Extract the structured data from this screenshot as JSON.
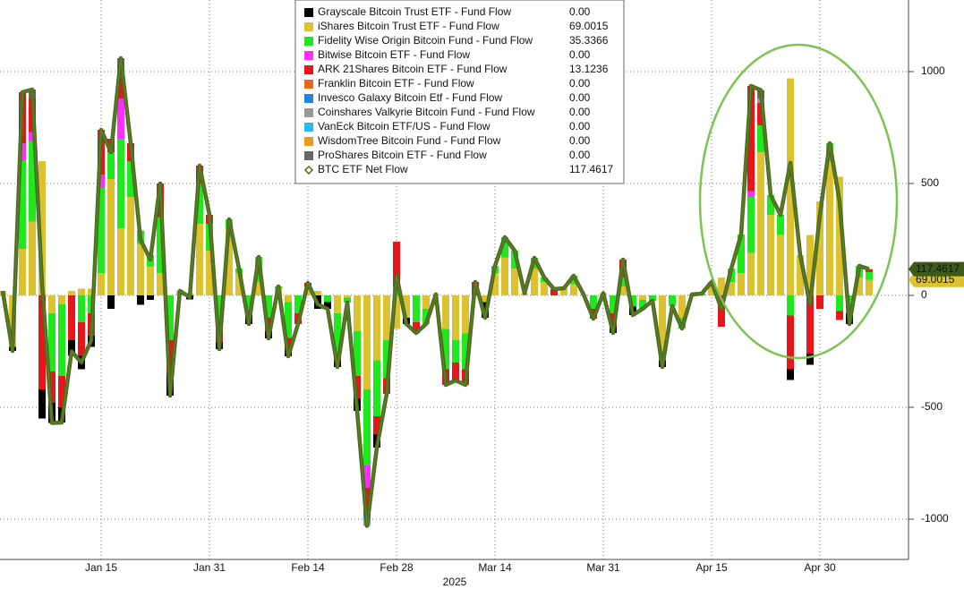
{
  "chart_data": {
    "type": "bar",
    "x_axis_label": "2025",
    "categories": [
      null,
      null,
      null,
      null,
      null,
      null,
      null,
      null,
      null,
      null,
      "Jan 15",
      null,
      null,
      null,
      null,
      null,
      null,
      null,
      null,
      null,
      null,
      "Jan 31",
      null,
      null,
      null,
      null,
      null,
      null,
      null,
      null,
      null,
      "Feb 14",
      null,
      null,
      null,
      null,
      null,
      null,
      null,
      null,
      "Feb 28",
      null,
      null,
      null,
      null,
      null,
      null,
      null,
      null,
      null,
      "Mar 14",
      null,
      null,
      null,
      null,
      null,
      null,
      null,
      null,
      null,
      null,
      "Mar 31",
      null,
      null,
      null,
      null,
      null,
      null,
      null,
      null,
      null,
      null,
      "Apr 15",
      null,
      null,
      null,
      null,
      null,
      null,
      null,
      null,
      null,
      null,
      "Apr 30",
      null,
      null,
      null,
      null,
      null
    ],
    "ylim": [
      -1180,
      1320
    ],
    "yticks": [
      -1000,
      -500,
      0,
      500,
      1000
    ],
    "grid": true,
    "series": [
      {
        "name": "Grayscale Bitcoin Trust ETF - Fund Flow",
        "color": "#000000",
        "legend_label": "0.00",
        "values": [
          0,
          -18,
          0,
          0,
          -130,
          -90,
          -68,
          -70,
          -60,
          -50,
          0,
          -60,
          0,
          0,
          -42,
          -20,
          0,
          -98,
          0,
          -18,
          0,
          0,
          -30,
          0,
          0,
          -38,
          0,
          -32,
          0,
          -32,
          0,
          0,
          -60,
          -30,
          -30,
          0,
          -56,
          0,
          -60,
          0,
          0,
          -28,
          0,
          0,
          0,
          0,
          0,
          0,
          0,
          -70,
          0,
          0,
          0,
          0,
          0,
          0,
          0,
          0,
          0,
          0,
          0,
          0,
          -28,
          0,
          -38,
          0,
          0,
          -30,
          0,
          0,
          0,
          0,
          0,
          0,
          0,
          0,
          0,
          0,
          0,
          0,
          -48,
          0,
          -50,
          0,
          0,
          0,
          -48,
          0,
          0
        ]
      },
      {
        "name": "iShares Bitcoin Trust ETF - Fund Flow",
        "color": "#dcc231",
        "legend_label": "69.0015",
        "values": [
          20,
          -230,
          208,
          330,
          600,
          -80,
          -40,
          20,
          30,
          30,
          100,
          520,
          300,
          440,
          230,
          130,
          100,
          0,
          20,
          10,
          320,
          200,
          0,
          300,
          100,
          0,
          60,
          0,
          30,
          -30,
          0,
          40,
          20,
          0,
          -80,
          -10,
          -160,
          -420,
          -290,
          -200,
          -150,
          -100,
          0,
          -60,
          5,
          -150,
          -200,
          -170,
          0,
          -30,
          100,
          170,
          120,
          10,
          120,
          60,
          0,
          32,
          50,
          4,
          0,
          10,
          0,
          40,
          0,
          -20,
          0,
          -250,
          0,
          -100,
          4,
          0,
          40,
          80,
          60,
          100,
          190,
          640,
          360,
          270,
          970,
          180,
          270,
          420,
          600,
          530,
          0,
          80,
          69.0015
        ]
      },
      {
        "name": "Fidelity Wise Origin Bitcoin Fund - Fund Flow",
        "color": "#1fe81f",
        "legend_label": "35.3366",
        "values": [
          0,
          0,
          392,
          360,
          0,
          -260,
          -320,
          0,
          -120,
          -80,
          380,
          120,
          400,
          160,
          60,
          50,
          250,
          -200,
          0,
          0,
          180,
          120,
          -120,
          40,
          20,
          -90,
          112,
          -100,
          10,
          -160,
          -80,
          0,
          0,
          -30,
          -180,
          -22,
          -200,
          -340,
          -250,
          -170,
          40,
          0,
          -120,
          -68,
          0,
          -180,
          -100,
          -160,
          0,
          0,
          32,
          90,
          80,
          0,
          48,
          20,
          0,
          0,
          38,
          0,
          -60,
          0,
          -80,
          40,
          -50,
          -40,
          -24,
          -40,
          -48,
          -48,
          0,
          8,
          20,
          0,
          60,
          172,
          250,
          120,
          88,
          90,
          -90,
          0,
          0,
          0,
          80,
          -70,
          -80,
          52,
          35.3366
        ]
      },
      {
        "name": "Bitwise Bitcoin ETF - Fund Flow",
        "color": "#ff2cff",
        "legend_label": "0.00",
        "values": [
          0,
          0,
          80,
          40,
          0,
          0,
          0,
          0,
          0,
          0,
          60,
          0,
          180,
          0,
          0,
          0,
          0,
          0,
          0,
          0,
          0,
          0,
          -30,
          0,
          0,
          0,
          0,
          0,
          0,
          0,
          0,
          0,
          0,
          0,
          0,
          0,
          0,
          -100,
          0,
          0,
          0,
          0,
          0,
          0,
          0,
          0,
          0,
          0,
          0,
          0,
          0,
          0,
          0,
          0,
          0,
          0,
          0,
          0,
          0,
          0,
          0,
          0,
          0,
          0,
          0,
          0,
          0,
          0,
          0,
          0,
          0,
          0,
          0,
          0,
          0,
          0,
          26,
          0,
          0,
          0,
          0,
          0,
          0,
          0,
          0,
          0,
          0,
          0,
          0
        ]
      },
      {
        "name": "ARK 21Shares Bitcoin ETF - Fund Flow",
        "color": "#e8151b",
        "legend_label": "13.1236",
        "values": [
          0,
          0,
          228,
          150,
          -420,
          -140,
          -140,
          -200,
          -150,
          -100,
          200,
          60,
          100,
          80,
          0,
          0,
          150,
          -150,
          0,
          0,
          80,
          40,
          -60,
          0,
          0,
          0,
          0,
          -60,
          0,
          -50,
          -48,
          16,
          0,
          0,
          -30,
          0,
          -100,
          -90,
          -80,
          -70,
          200,
          0,
          -48,
          0,
          0,
          -70,
          -80,
          -70,
          60,
          0,
          0,
          0,
          0,
          0,
          0,
          0,
          28,
          0,
          0,
          0,
          -44,
          0,
          -60,
          80,
          0,
          0,
          0,
          0,
          0,
          0,
          0,
          0,
          0,
          -140,
          0,
          0,
          470,
          100,
          0,
          0,
          -240,
          0,
          -260,
          -60,
          0,
          -40,
          0,
          0,
          13.1236
        ]
      },
      {
        "name": "Franklin Bitcoin ETF - Fund Flow",
        "color": "#e8681a",
        "legend_label": "0.00",
        "values": [
          0,
          0,
          0,
          0,
          0,
          0,
          0,
          0,
          0,
          0,
          0,
          0,
          0,
          0,
          0,
          0,
          0,
          0,
          0,
          0,
          0,
          0,
          0,
          0,
          0,
          0,
          0,
          0,
          0,
          0,
          0,
          0,
          0,
          0,
          0,
          0,
          0,
          -20,
          0,
          0,
          0,
          0,
          0,
          0,
          0,
          0,
          0,
          0,
          0,
          0,
          0,
          0,
          0,
          0,
          0,
          0,
          0,
          0,
          0,
          0,
          0,
          0,
          0,
          0,
          0,
          0,
          0,
          0,
          0,
          0,
          0,
          0,
          0,
          0,
          0,
          0,
          0,
          0,
          0,
          0,
          0,
          0,
          0,
          0,
          0,
          0,
          0,
          0,
          0
        ]
      },
      {
        "name": "Invesco Galaxy Bitcoin Etf - Fund Flow",
        "color": "#1f86e0",
        "legend_label": "0.00",
        "values": [
          0,
          0,
          0,
          0,
          0,
          0,
          0,
          0,
          0,
          0,
          0,
          0,
          0,
          0,
          0,
          0,
          0,
          0,
          0,
          0,
          0,
          0,
          0,
          0,
          0,
          0,
          0,
          0,
          0,
          0,
          0,
          0,
          0,
          0,
          0,
          0,
          0,
          -30,
          0,
          0,
          0,
          0,
          0,
          0,
          0,
          0,
          0,
          0,
          0,
          0,
          0,
          0,
          0,
          0,
          0,
          0,
          0,
          0,
          0,
          0,
          0,
          0,
          0,
          0,
          0,
          0,
          0,
          0,
          0,
          0,
          0,
          0,
          0,
          0,
          0,
          0,
          0,
          0,
          0,
          0,
          0,
          0,
          0,
          0,
          0,
          0,
          0,
          0,
          0
        ]
      },
      {
        "name": "Coinshares Valkyrie Bitcoin Fund - Fund Flow",
        "color": "#999999",
        "legend_label": "0.00",
        "values": [
          0,
          0,
          0,
          0,
          0,
          0,
          0,
          0,
          0,
          0,
          0,
          0,
          0,
          0,
          0,
          0,
          0,
          0,
          0,
          0,
          0,
          0,
          0,
          0,
          0,
          0,
          0,
          0,
          0,
          0,
          0,
          0,
          0,
          0,
          0,
          0,
          0,
          -30,
          0,
          0,
          0,
          0,
          0,
          0,
          0,
          0,
          0,
          0,
          0,
          0,
          0,
          0,
          0,
          0,
          0,
          0,
          0,
          0,
          0,
          0,
          0,
          0,
          0,
          0,
          0,
          0,
          0,
          0,
          0,
          0,
          0,
          0,
          0,
          0,
          0,
          0,
          0,
          20,
          0,
          0,
          0,
          0,
          0,
          0,
          0,
          0,
          0,
          0,
          0
        ]
      },
      {
        "name": "VanEck Bitcoin ETF/US - Fund Flow",
        "color": "#2bb8f2",
        "legend_label": "0.00",
        "values": [
          0,
          0,
          0,
          0,
          0,
          0,
          0,
          0,
          0,
          0,
          0,
          0,
          0,
          0,
          0,
          0,
          0,
          0,
          0,
          0,
          0,
          0,
          0,
          0,
          0,
          0,
          0,
          0,
          0,
          0,
          0,
          0,
          0,
          0,
          0,
          0,
          0,
          0,
          0,
          0,
          0,
          0,
          0,
          0,
          0,
          0,
          0,
          0,
          0,
          0,
          0,
          0,
          0,
          0,
          0,
          0,
          0,
          0,
          0,
          0,
          0,
          0,
          0,
          0,
          0,
          0,
          0,
          0,
          0,
          0,
          0,
          0,
          0,
          0,
          0,
          0,
          0,
          0,
          0,
          0,
          0,
          0,
          0,
          0,
          0,
          0,
          0,
          0,
          0
        ]
      },
      {
        "name": "WisdomTree Bitcoin Fund - Fund Flow",
        "color": "#ec9a1c",
        "legend_label": "0.00",
        "values": [
          0,
          0,
          0,
          0,
          0,
          0,
          0,
          0,
          0,
          0,
          0,
          0,
          0,
          0,
          0,
          0,
          0,
          0,
          0,
          0,
          0,
          0,
          0,
          0,
          0,
          0,
          0,
          0,
          0,
          0,
          0,
          0,
          0,
          0,
          0,
          0,
          0,
          0,
          0,
          0,
          0,
          0,
          0,
          0,
          0,
          0,
          0,
          0,
          0,
          0,
          0,
          0,
          0,
          0,
          0,
          0,
          0,
          0,
          0,
          0,
          0,
          0,
          0,
          0,
          0,
          0,
          0,
          0,
          0,
          0,
          0,
          0,
          0,
          0,
          0,
          0,
          0,
          0,
          0,
          0,
          0,
          0,
          0,
          0,
          0,
          0,
          0,
          0,
          0
        ]
      },
      {
        "name": "ProShares Bitcoin ETF - Fund Flow",
        "color": "#666666",
        "legend_label": "0.00",
        "values": [
          0,
          0,
          0,
          40,
          0,
          0,
          0,
          0,
          0,
          0,
          0,
          0,
          80,
          0,
          0,
          0,
          0,
          0,
          0,
          0,
          0,
          0,
          0,
          0,
          0,
          0,
          0,
          0,
          0,
          0,
          0,
          0,
          0,
          0,
          0,
          0,
          0,
          0,
          0,
          0,
          0,
          0,
          0,
          0,
          0,
          0,
          0,
          0,
          0,
          0,
          0,
          0,
          0,
          0,
          0,
          0,
          0,
          0,
          0,
          0,
          0,
          0,
          0,
          0,
          0,
          0,
          0,
          0,
          0,
          0,
          0,
          0,
          0,
          0,
          0,
          0,
          0,
          37,
          0,
          0,
          0,
          0,
          0,
          0,
          0,
          0,
          0,
          0,
          0
        ]
      },
      {
        "name": "BTC ETF Net Flow",
        "type": "line",
        "color": "#4a6a1c",
        "legend_label": "117.4617",
        "values": [
          20,
          -248,
          908,
          920,
          50,
          -570,
          -568,
          -250,
          -300,
          -200,
          740,
          640,
          1060,
          680,
          248,
          160,
          500,
          -448,
          20,
          -8,
          580,
          360,
          -240,
          340,
          120,
          -128,
          172,
          -192,
          40,
          -272,
          -128,
          56,
          -40,
          -60,
          -320,
          -32,
          -516,
          -1030,
          -680,
          -440,
          90,
          -128,
          -168,
          -128,
          5,
          -400,
          -380,
          -400,
          60,
          -100,
          132,
          260,
          200,
          10,
          168,
          80,
          28,
          32,
          88,
          4,
          -104,
          10,
          -168,
          160,
          -88,
          -60,
          -24,
          -320,
          -48,
          -148,
          4,
          8,
          60,
          -60,
          120,
          272,
          936,
          917,
          448,
          360,
          592,
          180,
          -40,
          360,
          680,
          420,
          -128,
          132,
          117.4617
        ]
      }
    ]
  }
}
